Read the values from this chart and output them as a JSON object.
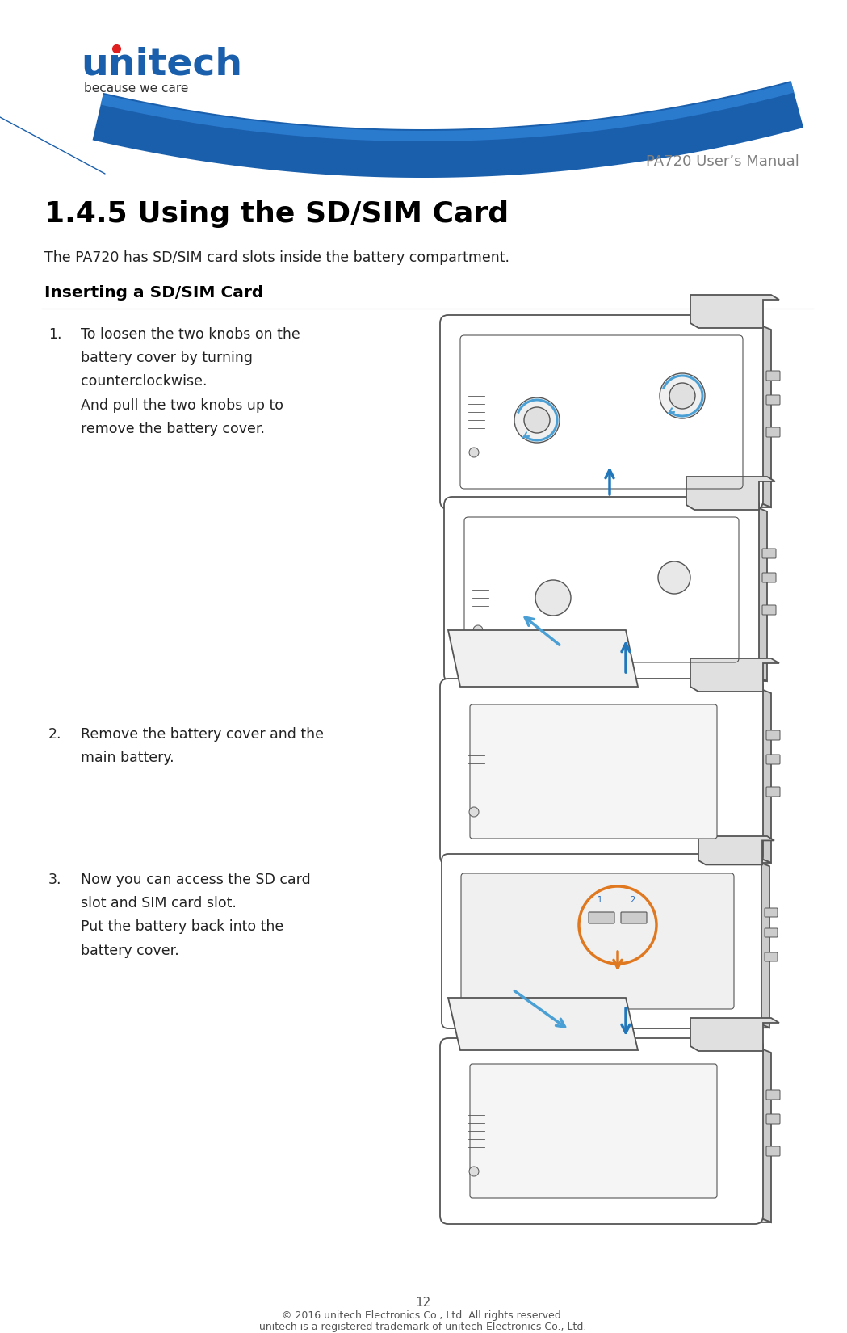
{
  "page_width": 10.49,
  "page_height": 16.5,
  "dpi": 100,
  "background_color": "#ffffff",
  "logo_text_unitech": "unitech",
  "logo_text_sub": "because we care",
  "logo_color": "#1a5fac",
  "logo_red_dot_color": "#e02020",
  "header_text": "PA720 User’s Manual",
  "header_color": "#808080",
  "title": "1.4.5 Using the SD/SIM Card",
  "title_color": "#000000",
  "intro_text": "The PA720 has SD/SIM card slots inside the battery compartment.",
  "subtitle": "Inserting a SD/SIM Card",
  "step1_num": "1.",
  "step1_text": "To loosen the two knobs on the\nbattery cover by turning\ncounterclockwise.\nAnd pull the two knobs up to\nremove the battery cover.",
  "step2_num": "2.",
  "step2_text": "Remove the battery cover and the\nmain battery.",
  "step3_num": "3.",
  "step3_text": "Now you can access the SD card\nslot and SIM card slot.\nPut the battery back into the\nbattery cover.",
  "footer_page": "12",
  "footer_line1": "© 2016 unitech Electronics Co., Ltd. All rights reserved.",
  "footer_line2": "unitech is a registered trademark of unitech Electronics Co., Ltd.",
  "footer_color": "#555555",
  "text_color": "#222222",
  "dark_blue": "#1a5fac",
  "mid_blue": "#2e7fd4",
  "light_blue": "#5aaae8",
  "orange_color": "#e07820",
  "device_line_color": "#555555",
  "device_bg": "#ffffff",
  "arrow_blue": "#4a9fd4",
  "arrow_blue2": "#2277bb"
}
